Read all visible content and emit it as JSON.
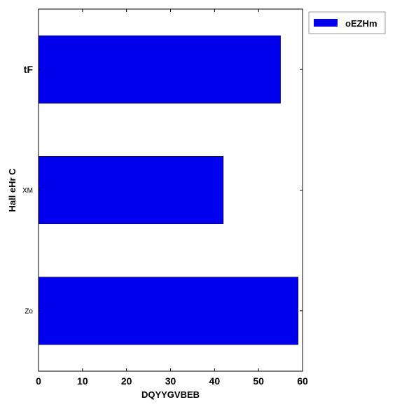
{
  "chart_data": {
    "type": "bar",
    "orientation": "horizontal",
    "title": "",
    "xlabel": "DQYYGVBEB",
    "ylabel": "Hall eHr C",
    "xlim": [
      0,
      60
    ],
    "xticks": [
      "0",
      "10",
      "20",
      "30",
      "40",
      "50",
      "60"
    ],
    "categories": [
      "tF",
      "XM",
      "Zo"
    ],
    "series": [
      {
        "name": "oEZHm",
        "values": [
          55,
          42,
          59
        ],
        "color": "#0000ee"
      }
    ],
    "grid": false,
    "legend_position": "top-right"
  }
}
